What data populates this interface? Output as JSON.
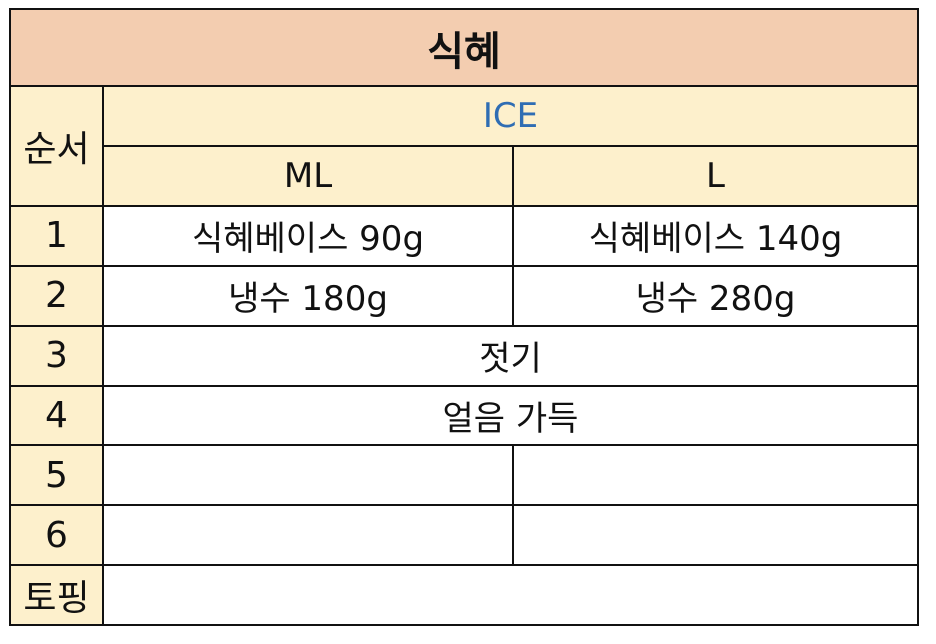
{
  "title": "식혜",
  "headers": {
    "order": "순서",
    "temperature": "ICE",
    "sizes": [
      "ML",
      "L"
    ]
  },
  "steps": [
    {
      "index": "1",
      "ml": "식혜베이스 90g",
      "l": "식혜베이스 140g"
    },
    {
      "index": "2",
      "ml": "냉수 180g",
      "l": "냉수 280g"
    },
    {
      "index": "3",
      "both": "젓기"
    },
    {
      "index": "4",
      "both": "얼음 가득"
    },
    {
      "index": "5",
      "ml": "",
      "l": ""
    },
    {
      "index": "6",
      "ml": "",
      "l": ""
    }
  ],
  "topping": {
    "label": "토핑",
    "value": ""
  },
  "colors": {
    "title_bg": "#f3cdb0",
    "header_bg": "#fdf0cc",
    "ice_text": "#2f6db3",
    "border": "#111111"
  }
}
